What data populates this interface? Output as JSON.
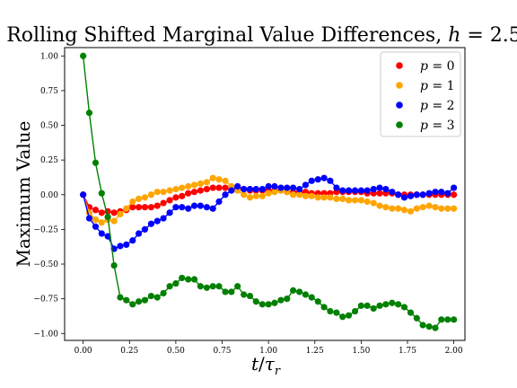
{
  "chart_data": {
    "type": "line",
    "title": "Rolling Shifted Marginal Value Differences, h = 2.5",
    "title_math": {
      "prefix": "Rolling Shifted Marginal Value Differences, ",
      "var": "h",
      "rest": " = 2.5"
    },
    "xlabel": "t/τr",
    "ylabel": "Maximum Value",
    "xlim": [
      -0.1,
      2.06
    ],
    "ylim": [
      -1.05,
      1.06
    ],
    "xticks": [
      0.0,
      0.25,
      0.5,
      0.75,
      1.0,
      1.25,
      1.5,
      1.75,
      2.0
    ],
    "xtick_labels": [
      "0.00",
      "0.25",
      "0.50",
      "0.75",
      "1.00",
      "1.25",
      "1.50",
      "1.75",
      "2.00"
    ],
    "yticks": [
      1.0,
      0.75,
      0.5,
      0.25,
      0.0,
      -0.25,
      -0.5,
      -0.75,
      -1.0
    ],
    "ytick_labels": [
      "1.00",
      "0.75",
      "0.50",
      "0.25",
      "0.00",
      "−0.25",
      "−0.50",
      "−0.75",
      "−1.00"
    ],
    "grid": false,
    "legend_position": "top-right",
    "x": [
      0.0,
      0.033,
      0.067,
      0.1,
      0.133,
      0.167,
      0.2,
      0.233,
      0.267,
      0.3,
      0.333,
      0.367,
      0.4,
      0.433,
      0.467,
      0.5,
      0.533,
      0.567,
      0.6,
      0.633,
      0.667,
      0.7,
      0.733,
      0.767,
      0.8,
      0.833,
      0.867,
      0.9,
      0.933,
      0.967,
      1.0,
      1.033,
      1.067,
      1.1,
      1.133,
      1.167,
      1.2,
      1.233,
      1.267,
      1.3,
      1.333,
      1.367,
      1.4,
      1.433,
      1.467,
      1.5,
      1.533,
      1.567,
      1.6,
      1.633,
      1.667,
      1.7,
      1.733,
      1.767,
      1.8,
      1.833,
      1.867,
      1.9,
      1.933,
      1.967,
      2.0
    ],
    "series": [
      {
        "name": "p = 0",
        "var": "p",
        "rest": " = 0",
        "color": "#ff0000",
        "values": [
          0.0,
          -0.09,
          -0.11,
          -0.13,
          -0.12,
          -0.13,
          -0.12,
          -0.11,
          -0.09,
          -0.09,
          -0.09,
          -0.09,
          -0.08,
          -0.06,
          -0.04,
          -0.02,
          -0.01,
          0.01,
          0.02,
          0.03,
          0.04,
          0.05,
          0.05,
          0.05,
          0.05,
          0.04,
          0.04,
          0.03,
          0.03,
          0.03,
          0.03,
          0.03,
          0.03,
          0.02,
          0.02,
          0.02,
          0.02,
          0.01,
          0.01,
          0.01,
          0.01,
          0.02,
          0.02,
          0.02,
          0.02,
          0.02,
          0.01,
          0.01,
          0.01,
          0.01,
          0.01,
          0.0,
          0.0,
          0.0,
          0.0,
          0.0,
          0.0,
          0.0,
          0.0,
          0.0,
          0.0
        ]
      },
      {
        "name": "p = 1",
        "var": "p",
        "rest": " = 1",
        "color": "#ffa500",
        "values": [
          0.0,
          -0.13,
          -0.18,
          -0.2,
          -0.18,
          -0.19,
          -0.14,
          -0.1,
          -0.05,
          -0.03,
          -0.02,
          0.0,
          0.02,
          0.02,
          0.03,
          0.04,
          0.05,
          0.06,
          0.07,
          0.08,
          0.09,
          0.12,
          0.11,
          0.1,
          0.06,
          0.03,
          0.0,
          -0.02,
          -0.01,
          -0.01,
          0.01,
          0.02,
          0.03,
          0.02,
          0.0,
          0.0,
          -0.01,
          -0.01,
          -0.02,
          -0.02,
          -0.02,
          -0.03,
          -0.03,
          -0.04,
          -0.04,
          -0.04,
          -0.05,
          -0.06,
          -0.08,
          -0.09,
          -0.1,
          -0.1,
          -0.11,
          -0.12,
          -0.1,
          -0.09,
          -0.08,
          -0.09,
          -0.1,
          -0.1,
          -0.1
        ]
      },
      {
        "name": "p = 2",
        "var": "p",
        "rest": " = 2",
        "color": "#0000ff",
        "values": [
          0.0,
          -0.17,
          -0.23,
          -0.28,
          -0.3,
          -0.39,
          -0.37,
          -0.36,
          -0.33,
          -0.28,
          -0.25,
          -0.21,
          -0.19,
          -0.17,
          -0.13,
          -0.09,
          -0.09,
          -0.1,
          -0.08,
          -0.08,
          -0.09,
          -0.1,
          -0.05,
          0.0,
          0.03,
          0.06,
          0.04,
          0.04,
          0.04,
          0.04,
          0.06,
          0.06,
          0.05,
          0.05,
          0.05,
          0.04,
          0.07,
          0.1,
          0.11,
          0.12,
          0.1,
          0.05,
          0.03,
          0.03,
          0.03,
          0.03,
          0.03,
          0.04,
          0.05,
          0.04,
          0.02,
          0.0,
          -0.02,
          -0.01,
          0.0,
          0.0,
          0.01,
          0.02,
          0.02,
          0.01,
          0.05
        ]
      },
      {
        "name": "p = 3",
        "var": "p",
        "rest": " = 3",
        "color": "#008000",
        "values": [
          1.0,
          0.59,
          0.23,
          0.01,
          -0.16,
          -0.51,
          -0.74,
          -0.76,
          -0.79,
          -0.77,
          -0.76,
          -0.73,
          -0.74,
          -0.71,
          -0.66,
          -0.64,
          -0.6,
          -0.61,
          -0.61,
          -0.66,
          -0.67,
          -0.66,
          -0.66,
          -0.7,
          -0.7,
          -0.66,
          -0.72,
          -0.73,
          -0.77,
          -0.79,
          -0.79,
          -0.78,
          -0.76,
          -0.75,
          -0.69,
          -0.7,
          -0.72,
          -0.74,
          -0.77,
          -0.81,
          -0.84,
          -0.85,
          -0.88,
          -0.87,
          -0.84,
          -0.8,
          -0.8,
          -0.82,
          -0.8,
          -0.79,
          -0.78,
          -0.79,
          -0.81,
          -0.85,
          -0.89,
          -0.94,
          -0.95,
          -0.96,
          -0.9,
          -0.9,
          -0.9
        ]
      }
    ]
  }
}
